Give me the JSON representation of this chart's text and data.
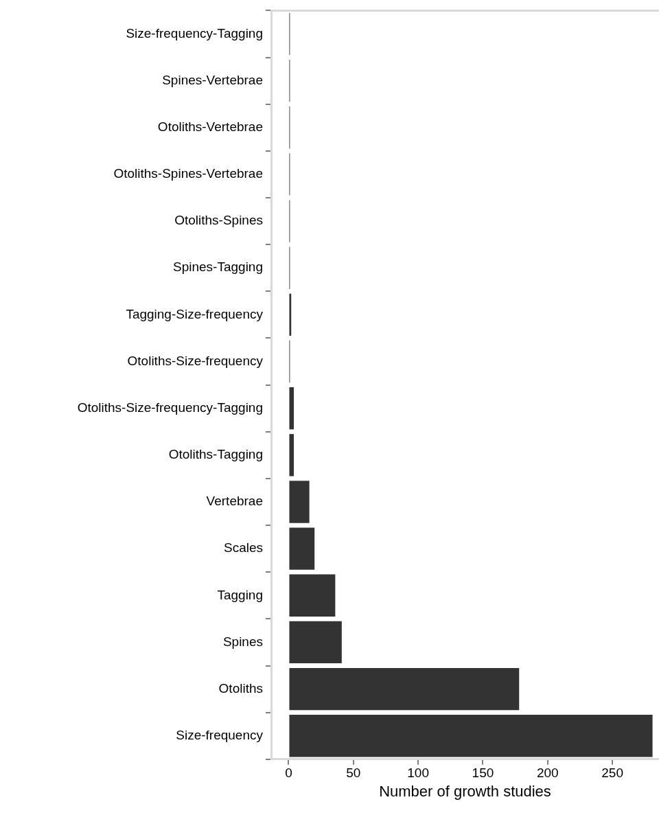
{
  "chart_data": {
    "type": "bar",
    "orientation": "horizontal",
    "xlabel": "Number of growth studies",
    "categories": [
      "Size-frequency-Tagging",
      "Spines-Vertebrae",
      "Otoliths-Vertebrae",
      "Otoliths-Spines-Vertebrae",
      "Otoliths-Spines",
      "Spines-Tagging",
      "Tagging-Size-frequency",
      "Otoliths-Size-frequency",
      "Otoliths-Size-frequency-Tagging",
      "Otoliths-Tagging",
      "Vertebrae",
      "Scales",
      "Tagging",
      "Spines",
      "Otoliths",
      "Size-frequency"
    ],
    "values": [
      1,
      1,
      1,
      1,
      1,
      1,
      2,
      1,
      4,
      4,
      16,
      20,
      36,
      41,
      178,
      281
    ],
    "color": "#333333",
    "xlim": [
      -13.5,
      286
    ],
    "xticks": [
      0,
      50,
      100,
      150,
      200,
      250
    ],
    "grid": false,
    "legend": false
  }
}
